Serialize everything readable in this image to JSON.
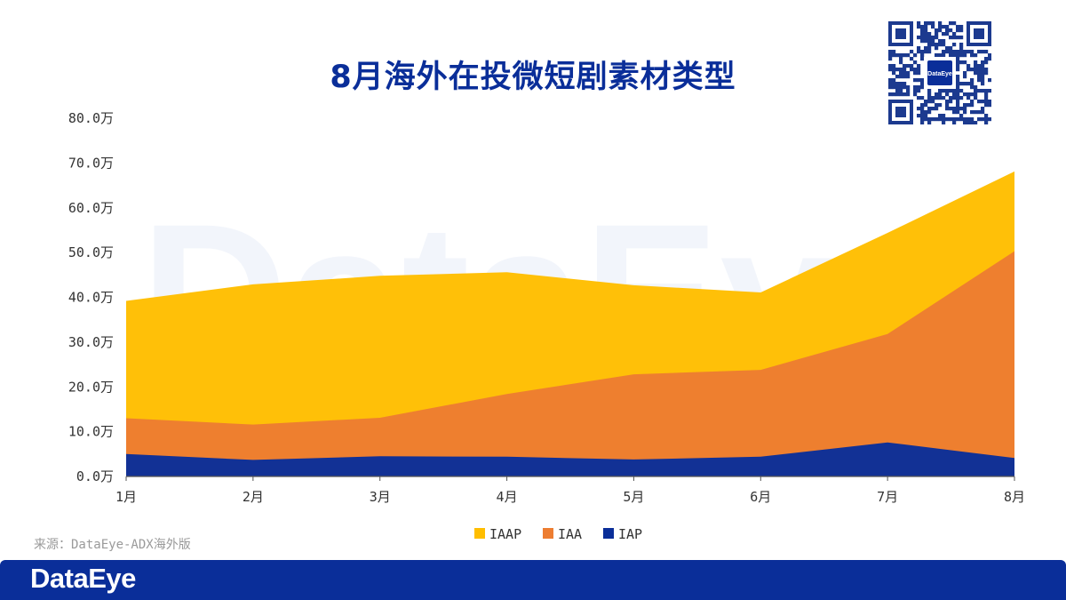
{
  "watermark": {
    "text": "DataEye"
  },
  "qr": {
    "logo_text": "DataEye"
  },
  "source": {
    "text": "来源：DataEye-ADX海外版"
  },
  "footer": {
    "logo_text": "DataEye"
  },
  "colors": {
    "IAAP": "#ffbe00",
    "IAA": "#ed7d31",
    "IAP": "#0a2e99",
    "title": "#0a2e99"
  },
  "chart_data": {
    "type": "area",
    "stacked": true,
    "title": "8月海外在投微短剧素材类型",
    "categories": [
      "1月",
      "2月",
      "3月",
      "4月",
      "5月",
      "6月",
      "7月",
      "8月"
    ],
    "series": [
      {
        "name": "IAP",
        "values": [
          5.0,
          3.7,
          4.5,
          4.4,
          3.8,
          4.4,
          7.6,
          4.1
        ]
      },
      {
        "name": "IAA",
        "values": [
          8.0,
          7.9,
          8.6,
          14.0,
          19.0,
          19.4,
          24.2,
          46.2
        ]
      },
      {
        "name": "IAAP",
        "values": [
          26.2,
          31.3,
          31.7,
          27.2,
          19.9,
          17.3,
          22.6,
          17.8
        ]
      }
    ],
    "y_ticks": [
      "0.0万",
      "10.0万",
      "20.0万",
      "30.0万",
      "40.0万",
      "50.0万",
      "60.0万",
      "70.0万",
      "80.0万"
    ],
    "ylim": [
      0,
      80
    ],
    "legend": [
      "IAAP",
      "IAA",
      "IAP"
    ],
    "legend_position": "bottom",
    "grid": false
  }
}
